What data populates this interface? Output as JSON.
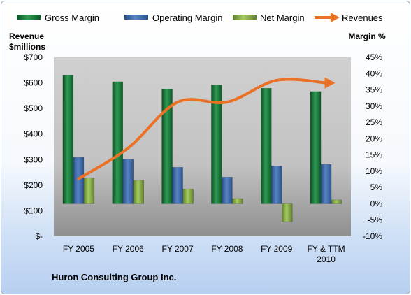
{
  "chart_data": {
    "type": "bar",
    "title": "",
    "company_label": "Huron Consulting Group Inc.",
    "categories": [
      "FY 2005",
      "FY 2006",
      "FY 2007",
      "FY 2008",
      "FY 2009",
      "FY & TTM 2010"
    ],
    "category_lines": [
      [
        "FY 2005"
      ],
      [
        "FY 2006"
      ],
      [
        "FY 2007"
      ],
      [
        "FY 2008"
      ],
      [
        "FY 2009"
      ],
      [
        "FY & TTM",
        "2010"
      ]
    ],
    "left_axis": {
      "title_lines": [
        "Revenue",
        "$millions"
      ],
      "range": [
        0,
        700
      ],
      "ticks": [
        0,
        100,
        200,
        300,
        400,
        500,
        600,
        700
      ],
      "tick_labels": [
        "$-",
        "$100",
        "$200",
        "$300",
        "$400",
        "$500",
        "$600",
        "$700"
      ]
    },
    "right_axis": {
      "title": "Margin %",
      "range": [
        -10,
        45
      ],
      "ticks": [
        -10,
        -5,
        0,
        5,
        10,
        15,
        20,
        25,
        30,
        35,
        40,
        45
      ],
      "tick_labels": [
        "-10%",
        "-5%",
        "0%",
        "5%",
        "10%",
        "15%",
        "20%",
        "25%",
        "30%",
        "35%",
        "40%",
        "45%"
      ]
    },
    "series": [
      {
        "name": "Gross Margin",
        "kind": "bar",
        "axis": "right",
        "color": "#1a7a3a",
        "values": [
          39.5,
          37.5,
          35.2,
          36.5,
          35.5,
          34.5
        ]
      },
      {
        "name": "Operating Margin",
        "kind": "bar",
        "axis": "right",
        "color": "#3d6aa8",
        "values": [
          14.3,
          13.7,
          11.2,
          8.2,
          11.6,
          12.1
        ]
      },
      {
        "name": "Net Margin",
        "kind": "bar",
        "axis": "right",
        "color": "#8ab04a",
        "values": [
          7.9,
          7.2,
          4.5,
          1.6,
          -5.5,
          1.2
        ]
      },
      {
        "name": "Revenues",
        "kind": "line",
        "axis": "left",
        "color": "#ea7125",
        "values": [
          225,
          345,
          525,
          525,
          610,
          600
        ]
      }
    ],
    "grid": false,
    "legend_position": "top"
  }
}
